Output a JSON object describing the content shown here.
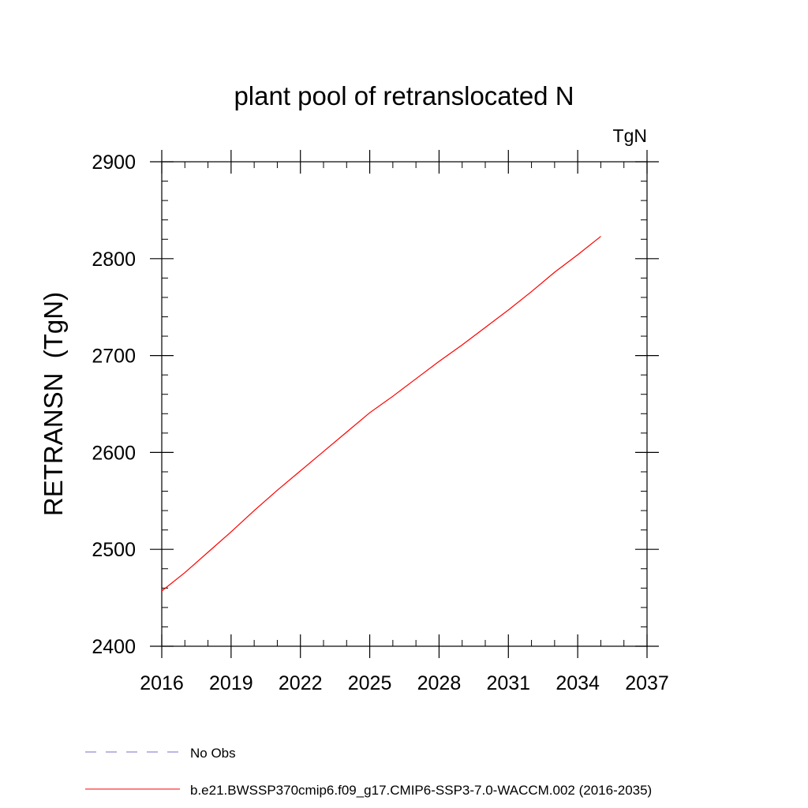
{
  "chart_data": {
    "type": "line",
    "title": "plant pool of retranslocated N",
    "units_label": "TgN",
    "xlabel": "",
    "ylabel": "RETRANSN  (TgN)",
    "xlim": [
      2016,
      2037
    ],
    "ylim": [
      2400,
      2900
    ],
    "x_ticks": [
      2016,
      2019,
      2022,
      2025,
      2028,
      2031,
      2034,
      2037
    ],
    "y_ticks": [
      2400,
      2500,
      2600,
      2700,
      2800,
      2900
    ],
    "x_minor_step": 1,
    "y_minor_step": 20,
    "grid": false,
    "legend_position": "bottom-left",
    "series": [
      {
        "name": "b.e21.BWSSP370cmip6.f09_g17.CMIP6-SSP3-7.0-WACCM.002 (2016-2035)",
        "color": "#ff0000",
        "style": "solid",
        "x": [
          2016,
          2017,
          2018,
          2019,
          2020,
          2021,
          2022,
          2023,
          2024,
          2025,
          2026,
          2027,
          2028,
          2029,
          2030,
          2031,
          2032,
          2033,
          2034,
          2035
        ],
        "values": [
          2457,
          2476,
          2497,
          2518,
          2540,
          2561,
          2581,
          2601,
          2621,
          2641,
          2658,
          2676,
          2694,
          2711,
          2729,
          2747,
          2766,
          2786,
          2804,
          2823
        ]
      },
      {
        "name": "No Obs",
        "color": "#7b6fc4",
        "style": "dashed",
        "x": [],
        "values": []
      }
    ]
  }
}
